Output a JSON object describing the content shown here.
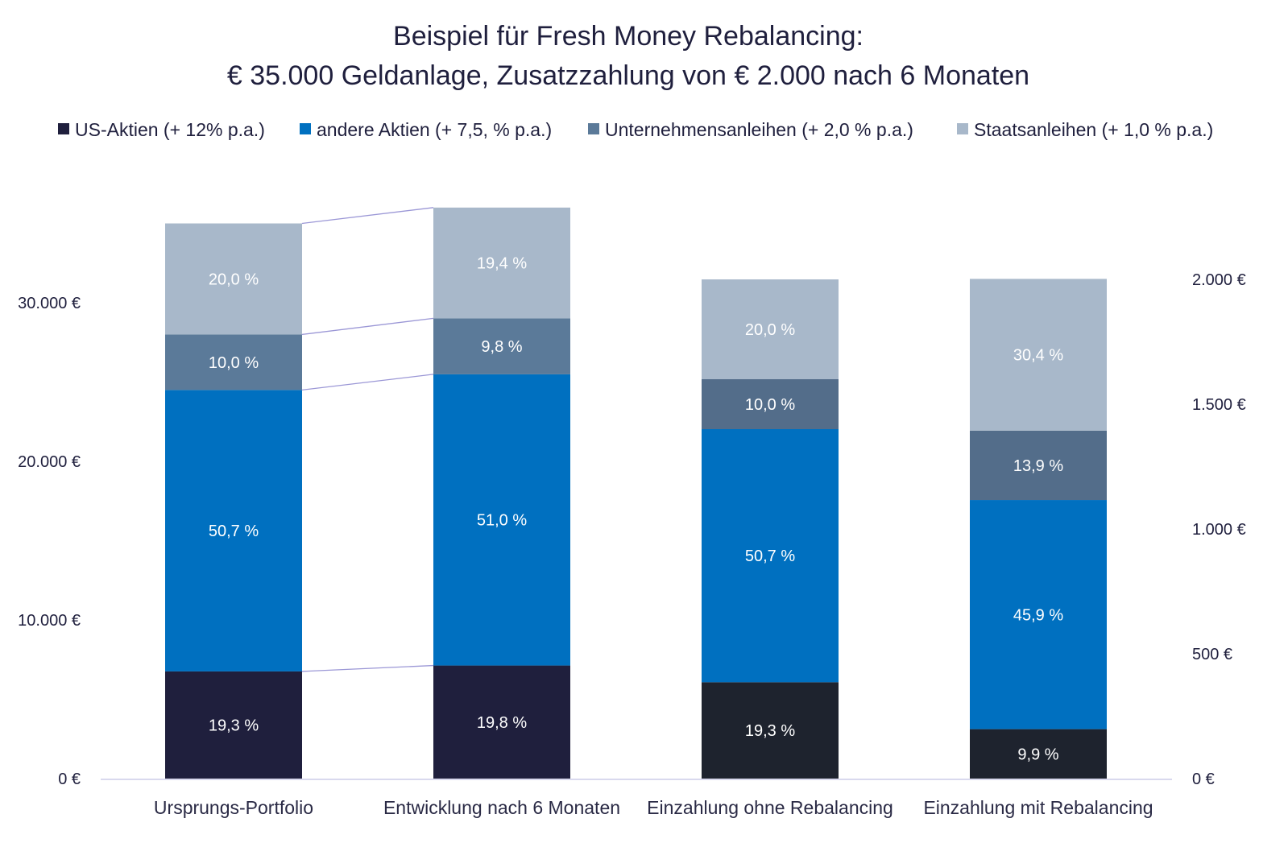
{
  "chart_data": {
    "type": "bar",
    "stacked": true,
    "title": "Beispiel für Fresh Money Rebalancing:",
    "subtitle": "€ 35.000 Geldanlage, Zusatzzahlung von € 2.000 nach 6 Monaten",
    "legend_position": "top",
    "grid": false,
    "categories": [
      "Ursprungs-Portfolio",
      "Entwicklung nach 6 Monaten",
      "Einzahlung ohne Rebalancing",
      "Einzahlung mit Rebalancing"
    ],
    "axis_for_category": [
      "left",
      "left",
      "right",
      "right"
    ],
    "y_left": {
      "ylim": [
        0,
        30000
      ],
      "ticks": [
        "0 €",
        "10.000 €",
        "20.000 €",
        "30.000 €"
      ],
      "tick_values": [
        0,
        10000,
        20000,
        30000
      ]
    },
    "y_right": {
      "ylim": [
        0,
        2000
      ],
      "ticks": [
        "0 €",
        "500 €",
        "1.000 €",
        "1.500 €",
        "2.000 €"
      ],
      "tick_values": [
        0,
        500,
        1000,
        1500,
        2000
      ]
    },
    "series": [
      {
        "name": "US-Aktien (+ 12% p.a.)",
        "color": "#1f1f3d",
        "color_secondary": "#1e232e",
        "values": [
          6755,
          7128,
          386,
          198
        ],
        "labels": [
          "19,3 %",
          "19,8 %",
          "19,3 %",
          "9,9 %"
        ]
      },
      {
        "name": "andere Aktien (+ 7,5, % p.a.)",
        "color": "#0070c0",
        "color_secondary": "#0070c0",
        "values": [
          17745,
          18360,
          1014,
          918
        ],
        "labels": [
          "50,7 %",
          "51,0 %",
          "50,7 %",
          "45,9 %"
        ]
      },
      {
        "name": "Unternehmensanleihen (+ 2,0 % p.a.)",
        "color": "#5b7a99",
        "color_secondary": "#536d8a",
        "values": [
          3500,
          3528,
          200,
          278
        ],
        "labels": [
          "10,0 %",
          "9,8 %",
          "10,0 %",
          "13,9 %"
        ]
      },
      {
        "name": "Staatsanleihen (+ 1,0 % p.a.)",
        "color": "#a8b8ca",
        "color_secondary": "#a8b8ca",
        "values": [
          7000,
          6984,
          400,
          608
        ],
        "labels": [
          "20,0 %",
          "19,4 %",
          "20,0 %",
          "30,4 %"
        ]
      }
    ],
    "connector_color": "#9b97d6",
    "axis_line_color": "#d9d9ee"
  }
}
